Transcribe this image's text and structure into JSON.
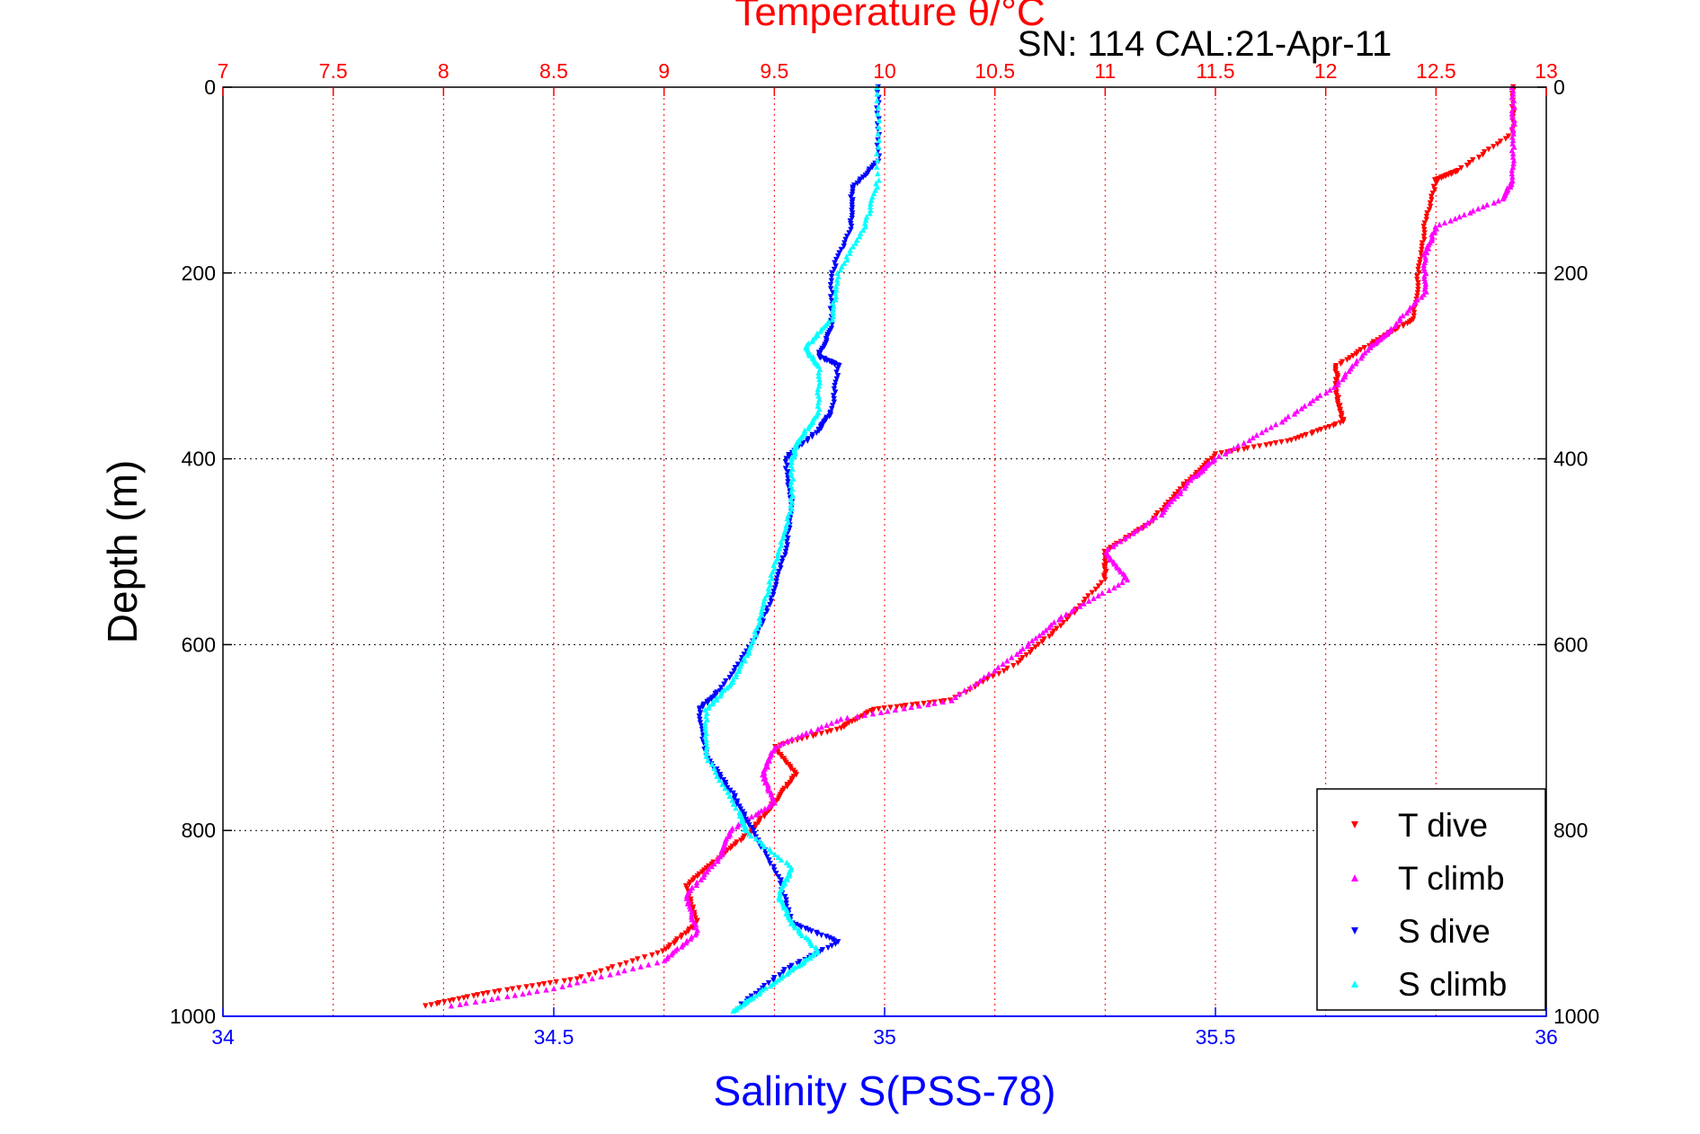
{
  "chart_data": {
    "type": "scatter",
    "title": "Temperature θ/°C",
    "subtitle": "SN: 114  CAL:21-Apr-11",
    "ylabel": "Depth (m)",
    "xlabel_bottom": "Salinity S(PSS-78)",
    "xlabel_top": "Temperature θ/°C",
    "y_range": [
      0,
      1000
    ],
    "y_reversed": true,
    "y_ticks": [
      "0",
      "200",
      "400",
      "600",
      "800",
      "1000"
    ],
    "salinity_range": [
      34,
      36
    ],
    "salinity_ticks": [
      "34",
      "34.5",
      "35",
      "35.5",
      "36"
    ],
    "temperature_range": [
      7,
      13
    ],
    "temperature_ticks": [
      "7",
      "7.5",
      "8",
      "8.5",
      "9",
      "9.5",
      "10",
      "10.5",
      "11",
      "11.5",
      "12",
      "12.5",
      "13"
    ],
    "grid": true,
    "legend_position": "bottom-right",
    "series": [
      {
        "name": "T dive",
        "axis": "temperature",
        "color": "#ff0000",
        "marker": "triangle-down",
        "points": [
          [
            12.85,
            0
          ],
          [
            12.85,
            50
          ],
          [
            12.6,
            90
          ],
          [
            12.5,
            100
          ],
          [
            12.45,
            150
          ],
          [
            12.42,
            200
          ],
          [
            12.4,
            250
          ],
          [
            12.25,
            270
          ],
          [
            12.05,
            300
          ],
          [
            12.05,
            330
          ],
          [
            12.08,
            360
          ],
          [
            11.85,
            380
          ],
          [
            11.5,
            395
          ],
          [
            11.35,
            430
          ],
          [
            11.2,
            470
          ],
          [
            11.0,
            500
          ],
          [
            11.0,
            530
          ],
          [
            10.8,
            580
          ],
          [
            10.6,
            620
          ],
          [
            10.3,
            660
          ],
          [
            9.95,
            670
          ],
          [
            9.8,
            690
          ],
          [
            9.5,
            710
          ],
          [
            9.6,
            740
          ],
          [
            9.5,
            770
          ],
          [
            9.4,
            800
          ],
          [
            9.25,
            830
          ],
          [
            9.1,
            860
          ],
          [
            9.15,
            900
          ],
          [
            9.0,
            930
          ],
          [
            8.6,
            960
          ],
          [
            8.2,
            975
          ],
          [
            7.9,
            990
          ]
        ]
      },
      {
        "name": "T climb",
        "axis": "temperature",
        "color": "#ff00ff",
        "marker": "triangle-up",
        "points": [
          [
            12.85,
            0
          ],
          [
            12.85,
            50
          ],
          [
            12.85,
            100
          ],
          [
            12.8,
            120
          ],
          [
            12.5,
            150
          ],
          [
            12.45,
            180
          ],
          [
            12.45,
            220
          ],
          [
            12.3,
            260
          ],
          [
            12.2,
            280
          ],
          [
            12.05,
            320
          ],
          [
            11.8,
            360
          ],
          [
            11.5,
            400
          ],
          [
            11.4,
            420
          ],
          [
            11.25,
            460
          ],
          [
            11.0,
            500
          ],
          [
            11.1,
            530
          ],
          [
            10.8,
            570
          ],
          [
            10.6,
            610
          ],
          [
            10.3,
            660
          ],
          [
            9.8,
            680
          ],
          [
            9.5,
            710
          ],
          [
            9.45,
            740
          ],
          [
            9.5,
            770
          ],
          [
            9.3,
            800
          ],
          [
            9.25,
            830
          ],
          [
            9.1,
            870
          ],
          [
            9.15,
            910
          ],
          [
            9.0,
            940
          ],
          [
            8.5,
            970
          ],
          [
            8.0,
            990
          ]
        ]
      },
      {
        "name": "S dive",
        "axis": "salinity",
        "color": "#0000ff",
        "marker": "triangle-down",
        "points": [
          [
            34.99,
            0
          ],
          [
            34.99,
            80
          ],
          [
            34.95,
            110
          ],
          [
            34.95,
            150
          ],
          [
            34.92,
            200
          ],
          [
            34.92,
            260
          ],
          [
            34.9,
            290
          ],
          [
            34.93,
            300
          ],
          [
            34.92,
            350
          ],
          [
            34.9,
            370
          ],
          [
            34.85,
            400
          ],
          [
            34.86,
            450
          ],
          [
            34.85,
            500
          ],
          [
            34.83,
            550
          ],
          [
            34.8,
            600
          ],
          [
            34.75,
            650
          ],
          [
            34.72,
            670
          ],
          [
            34.73,
            720
          ],
          [
            34.77,
            760
          ],
          [
            34.8,
            800
          ],
          [
            34.84,
            850
          ],
          [
            34.86,
            900
          ],
          [
            34.93,
            920
          ],
          [
            34.85,
            950
          ],
          [
            34.78,
            990
          ]
        ]
      },
      {
        "name": "S climb",
        "axis": "salinity",
        "color": "#00ffff",
        "marker": "triangle-up",
        "points": [
          [
            34.99,
            0
          ],
          [
            34.99,
            100
          ],
          [
            34.97,
            150
          ],
          [
            34.93,
            200
          ],
          [
            34.92,
            250
          ],
          [
            34.88,
            280
          ],
          [
            34.9,
            300
          ],
          [
            34.9,
            350
          ],
          [
            34.87,
            380
          ],
          [
            34.86,
            400
          ],
          [
            34.86,
            450
          ],
          [
            34.84,
            500
          ],
          [
            34.82,
            550
          ],
          [
            34.8,
            600
          ],
          [
            34.77,
            640
          ],
          [
            34.73,
            670
          ],
          [
            34.73,
            720
          ],
          [
            34.78,
            780
          ],
          [
            34.79,
            800
          ],
          [
            34.86,
            840
          ],
          [
            34.84,
            870
          ],
          [
            34.86,
            900
          ],
          [
            34.9,
            930
          ],
          [
            34.86,
            950
          ],
          [
            34.8,
            980
          ],
          [
            34.77,
            995
          ]
        ]
      }
    ]
  }
}
